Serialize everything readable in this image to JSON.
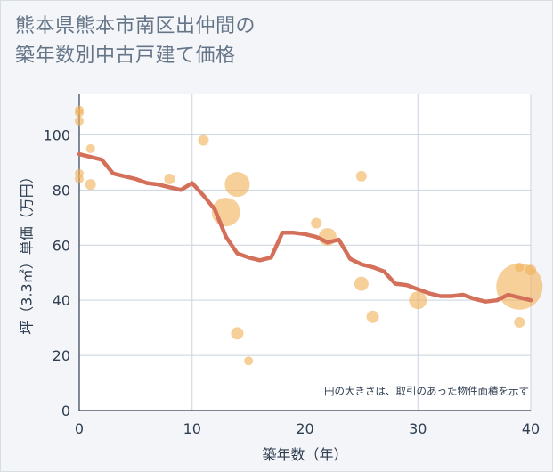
{
  "chart_data": {
    "type": "scatter",
    "title_line1": "熊本県熊本市南区出仲間の",
    "title_line2": "築年数別中古戸建て価格",
    "xlabel": "築年数（年）",
    "ylabel": "坪（3.3㎡）単価（万円）",
    "xlim": [
      0,
      40
    ],
    "ylim": [
      0,
      115
    ],
    "xticks": [
      0,
      10,
      20,
      30,
      40
    ],
    "yticks": [
      0,
      20,
      40,
      60,
      80,
      100
    ],
    "xtick_labels": [
      "0",
      "10",
      "20",
      "30",
      "40"
    ],
    "ytick_labels": [
      "0",
      "20",
      "40",
      "60",
      "80",
      "100"
    ],
    "note": "円の大きさは、取引のあった物件面積を示す",
    "colors": {
      "bubble": "#f0b25a",
      "line": "#d4705a",
      "grid": "#c9d4e1",
      "axis": "#2f3e50"
    },
    "bubbles": [
      {
        "x": 0,
        "y": 109,
        "size": 5
      },
      {
        "x": 0,
        "y": 108,
        "size": 5
      },
      {
        "x": 0,
        "y": 105,
        "size": 5
      },
      {
        "x": 0,
        "y": 86,
        "size": 5
      },
      {
        "x": 0,
        "y": 84,
        "size": 5
      },
      {
        "x": 1,
        "y": 95,
        "size": 5
      },
      {
        "x": 1,
        "y": 82,
        "size": 6
      },
      {
        "x": 8,
        "y": 84,
        "size": 6
      },
      {
        "x": 11,
        "y": 98,
        "size": 6
      },
      {
        "x": 13,
        "y": 72,
        "size": 16
      },
      {
        "x": 14,
        "y": 82,
        "size": 14
      },
      {
        "x": 14,
        "y": 28,
        "size": 7
      },
      {
        "x": 15,
        "y": 18,
        "size": 5
      },
      {
        "x": 21,
        "y": 68,
        "size": 6
      },
      {
        "x": 22,
        "y": 63,
        "size": 10
      },
      {
        "x": 25,
        "y": 85,
        "size": 6
      },
      {
        "x": 25,
        "y": 46,
        "size": 8
      },
      {
        "x": 26,
        "y": 34,
        "size": 7
      },
      {
        "x": 30,
        "y": 40,
        "size": 10
      },
      {
        "x": 39,
        "y": 45,
        "size": 26
      },
      {
        "x": 39,
        "y": 52,
        "size": 5
      },
      {
        "x": 40,
        "y": 51,
        "size": 6
      },
      {
        "x": 39,
        "y": 32,
        "size": 6
      }
    ],
    "trend": {
      "x": [
        0,
        1,
        2,
        3,
        4,
        5,
        6,
        7,
        8,
        9,
        10,
        11,
        12,
        13,
        14,
        15,
        16,
        17,
        18,
        19,
        20,
        21,
        22,
        23,
        24,
        25,
        26,
        27,
        28,
        29,
        30,
        31,
        32,
        33,
        34,
        35,
        36,
        37,
        38,
        39,
        40
      ],
      "y": [
        93,
        92,
        91,
        86,
        85,
        84,
        82.5,
        82,
        81,
        80,
        82.5,
        78,
        73,
        63,
        57,
        55.5,
        54.5,
        55.5,
        64.5,
        64.5,
        64,
        63,
        61,
        62,
        55,
        53,
        52,
        50.5,
        46,
        45.5,
        44,
        42.5,
        41.5,
        41.5,
        42,
        40.5,
        39.5,
        40,
        42,
        41,
        40
      ]
    }
  }
}
